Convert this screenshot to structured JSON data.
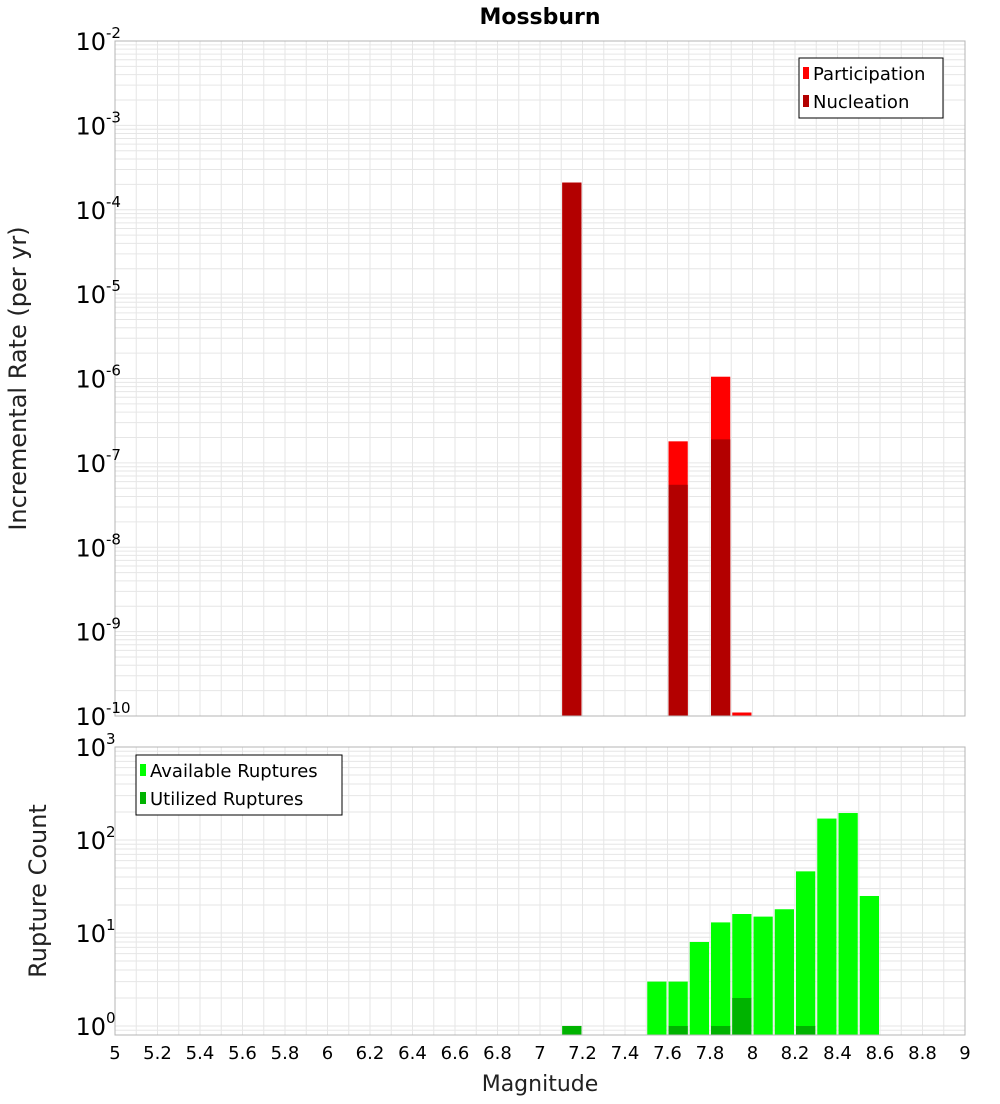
{
  "chart_data": [
    {
      "type": "bar",
      "title": "Mossburn",
      "xlabel": "",
      "ylabel": "Incremental Rate (per yr)",
      "xlim": [
        5,
        9
      ],
      "ylim": [
        1e-10,
        0.01
      ],
      "yscale": "log",
      "bar_width": 0.1,
      "grid": true,
      "legend_position": "top-right",
      "y_ticks": [
        {
          "base": "10",
          "exp": "-10"
        },
        {
          "base": "10",
          "exp": "-9"
        },
        {
          "base": "10",
          "exp": "-8"
        },
        {
          "base": "10",
          "exp": "-7"
        },
        {
          "base": "10",
          "exp": "-6"
        },
        {
          "base": "10",
          "exp": "-5"
        },
        {
          "base": "10",
          "exp": "-4"
        },
        {
          "base": "10",
          "exp": "-3"
        },
        {
          "base": "10",
          "exp": "-2"
        }
      ],
      "series": [
        {
          "name": "Participation",
          "color": "#ff0000",
          "x": [
            7.15,
            7.65,
            7.85,
            7.95
          ],
          "values": [
            0.00021,
            1.8e-07,
            1.05e-06,
            1.1e-10
          ]
        },
        {
          "name": "Nucleation",
          "color": "#b30000",
          "x": [
            7.15,
            7.65,
            7.85
          ],
          "values": [
            0.00021,
            5.5e-08,
            1.9e-07
          ]
        }
      ]
    },
    {
      "type": "bar",
      "title": "",
      "xlabel": "Magnitude",
      "ylabel": "Rupture Count",
      "xlim": [
        5,
        9
      ],
      "ylim": [
        0.8,
        1000
      ],
      "yscale": "log",
      "bar_width": 0.1,
      "grid": true,
      "legend_position": "top-left",
      "x_ticks": [
        "5",
        "5.2",
        "5.4",
        "5.6",
        "5.8",
        "6",
        "6.2",
        "6.4",
        "6.6",
        "6.8",
        "7",
        "7.2",
        "7.4",
        "7.6",
        "7.8",
        "8",
        "8.2",
        "8.4",
        "8.6",
        "8.8",
        "9"
      ],
      "y_ticks": [
        {
          "base": "10",
          "exp": "0"
        },
        {
          "base": "10",
          "exp": "1"
        },
        {
          "base": "10",
          "exp": "2"
        },
        {
          "base": "10",
          "exp": "3"
        }
      ],
      "series": [
        {
          "name": "Available Ruptures",
          "color": "#00ff00",
          "x": [
            7.15,
            7.55,
            7.65,
            7.75,
            7.85,
            7.95,
            8.05,
            8.15,
            8.25,
            8.35,
            8.45,
            8.55
          ],
          "values": [
            1,
            3,
            3,
            8,
            13,
            16,
            15,
            18,
            46,
            170,
            195,
            25
          ]
        },
        {
          "name": "Utilized Ruptures",
          "color": "#00b300",
          "x": [
            7.15,
            7.65,
            7.85,
            7.95,
            8.25
          ],
          "values": [
            1,
            1,
            1,
            2,
            1
          ]
        }
      ]
    }
  ],
  "colors": {
    "plot_border": "#b4b4b4",
    "grid": "#e6e6e6",
    "legend_border": "#000000"
  }
}
